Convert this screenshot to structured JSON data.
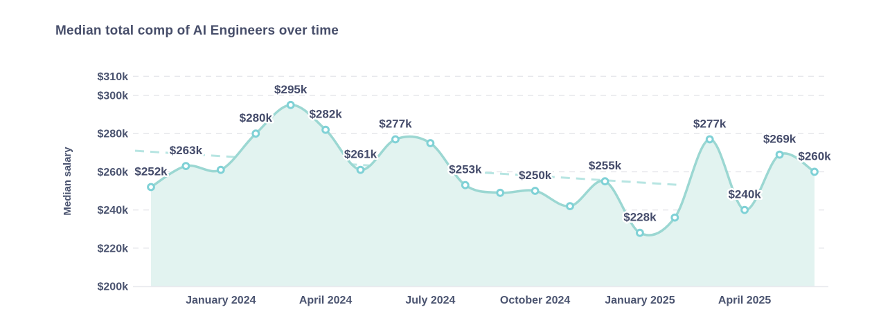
{
  "chart_data": {
    "type": "area",
    "title": "Median total comp of AI Engineers over time",
    "ylabel": "Median salary",
    "xlabel": "",
    "unit": "USD thousands per year",
    "ylim": [
      200,
      310
    ],
    "grid": "dashed horizontal gridlines",
    "legend": "none",
    "y_ticks": [
      {
        "label": "$310k",
        "value": 310
      },
      {
        "label": "$300k",
        "value": 300
      },
      {
        "label": "$280k",
        "value": 280
      },
      {
        "label": "$260k",
        "value": 260
      },
      {
        "label": "$240k",
        "value": 240
      },
      {
        "label": "$220k",
        "value": 220
      },
      {
        "label": "$200k",
        "value": 200
      }
    ],
    "x_ticks": [
      {
        "label": "January 2024",
        "point_index": 2
      },
      {
        "label": "April 2024",
        "point_index": 5
      },
      {
        "label": "July 2024",
        "point_index": 8
      },
      {
        "label": "October 2024",
        "point_index": 11
      },
      {
        "label": "January 2025",
        "point_index": 14
      },
      {
        "label": "April 2025",
        "point_index": 17
      }
    ],
    "points": [
      {
        "value": 252,
        "label": "$252k"
      },
      {
        "value": 263,
        "label": "$263k"
      },
      {
        "value": 261,
        "label": null
      },
      {
        "value": 280,
        "label": "$280k"
      },
      {
        "value": 295,
        "label": "$295k"
      },
      {
        "value": 282,
        "label": "$282k"
      },
      {
        "value": 261,
        "label": "$261k"
      },
      {
        "value": 277,
        "label": "$277k"
      },
      {
        "value": 275,
        "label": null
      },
      {
        "value": 253,
        "label": "$253k"
      },
      {
        "value": 249,
        "label": null
      },
      {
        "value": 250,
        "label": "$250k"
      },
      {
        "value": 242,
        "label": null
      },
      {
        "value": 255,
        "label": "$255k"
      },
      {
        "value": 228,
        "label": "$228k"
      },
      {
        "value": 236,
        "label": null
      },
      {
        "value": 277,
        "label": "$277k"
      },
      {
        "value": 240,
        "label": "$240k"
      },
      {
        "value": 269,
        "label": "$269k"
      },
      {
        "value": 260,
        "label": "$260k"
      }
    ],
    "trendline": {
      "style": "dashed",
      "start_value": 271,
      "end_value": 253,
      "spans_points": [
        0,
        15
      ]
    },
    "colors": {
      "line": "#9bd7d2",
      "marker_ring": "#7fd1d6",
      "marker_fill": "#ffffff",
      "area_fill": "#e2f3f0",
      "trendline": "#b7e5e2",
      "gridline": "#e6e7eb",
      "baseline": "#e9eaee",
      "text": "#4b5470",
      "label_text": "#454c6b",
      "label_halo": "#ffffff"
    }
  }
}
